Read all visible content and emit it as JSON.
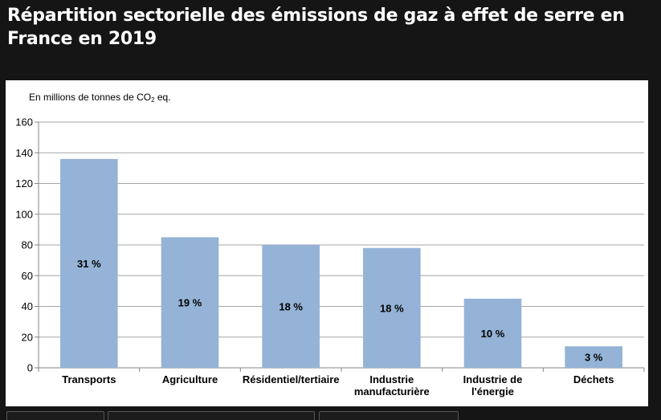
{
  "page": {
    "title": "Répartition sectorielle des émissions de gaz à effet de serre en France en 2019"
  },
  "chart_data": {
    "type": "bar",
    "unit_prefix": "En millions de tonnes  de CO",
    "unit_subscript": "2",
    "unit_suffix": " eq.",
    "categories": [
      [
        "Transports"
      ],
      [
        "Agriculture"
      ],
      [
        "Résidentiel/tertiaire"
      ],
      [
        "Industrie",
        "manufacturière"
      ],
      [
        "Industrie de",
        "l'énergie"
      ],
      [
        "Déchets"
      ]
    ],
    "values": [
      136,
      85,
      80,
      78,
      45,
      14
    ],
    "data_labels": [
      "31 %",
      "19 %",
      "18 %",
      "18 %",
      "10 %",
      "3 %"
    ],
    "ylim": [
      0,
      160
    ],
    "yticks": [
      0,
      20,
      40,
      60,
      80,
      100,
      120,
      140,
      160
    ],
    "grid": true,
    "colors": {
      "bar": "#95b3d7",
      "grid": "#a6a6a6",
      "axis": "#868686"
    }
  }
}
